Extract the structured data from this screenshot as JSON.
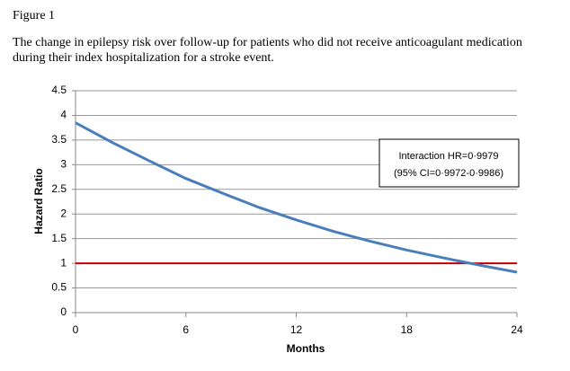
{
  "chart_data": {
    "type": "line",
    "figure_label": "Figure 1",
    "caption_lines": [
      "The change in epilepsy risk over follow-up for patients who did not receive anticoagulant medication",
      "during their index hospitalization for a stroke event."
    ],
    "x": [
      0,
      2,
      4,
      6,
      8,
      10,
      12,
      14,
      16,
      18,
      20,
      22,
      24
    ],
    "series": [
      {
        "color": "#4a7ebb",
        "values": [
          3.85,
          3.45,
          3.08,
          2.72,
          2.42,
          2.13,
          1.88,
          1.65,
          1.45,
          1.27,
          1.11,
          0.96,
          0.82
        ]
      },
      {
        "color": "#c00000",
        "values": [
          1,
          1,
          1,
          1,
          1,
          1,
          1,
          1,
          1,
          1,
          1,
          1,
          1
        ]
      }
    ],
    "xlim": [
      0,
      24
    ],
    "xticks": [
      0,
      6,
      12,
      18,
      24
    ],
    "ylim": [
      0,
      4.5
    ],
    "yticks": [
      0,
      0.5,
      1,
      1.5,
      2,
      2.5,
      3,
      3.5,
      4,
      4.5
    ],
    "xlabel": "Months",
    "ylabel": "Hazard Ratio",
    "grid": true,
    "annotation_lines": [
      "Interaction HR=0·9979",
      "(95% CI=0·9972-0·9986)"
    ]
  }
}
